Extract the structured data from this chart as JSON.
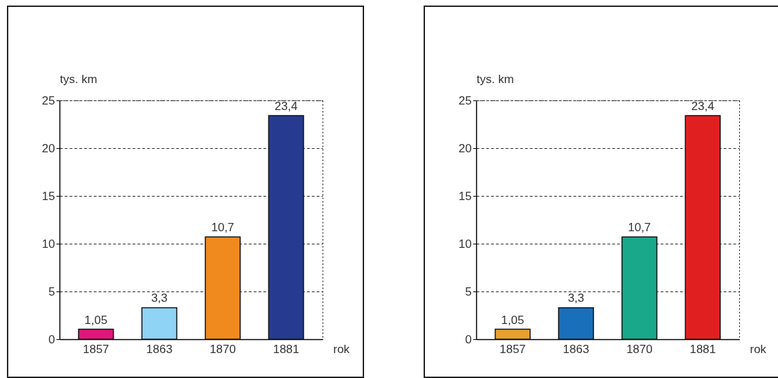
{
  "chart_data": [
    {
      "type": "bar",
      "categories": [
        "1857",
        "1863",
        "1870",
        "1881"
      ],
      "values": [
        1.05,
        3.3,
        10.7,
        23.4
      ],
      "colors": [
        "#e0177a",
        "#8fd3f5",
        "#f08a1e",
        "#263b8f"
      ],
      "value_labels": [
        "1,05",
        "3,3",
        "10,7",
        "23,4"
      ],
      "ylabel": "tys. km",
      "xlabel": "rok",
      "ylim": [
        0,
        25
      ],
      "yticks": [
        0,
        5,
        10,
        15,
        20,
        25
      ],
      "grid": "y"
    },
    {
      "type": "bar",
      "categories": [
        "1857",
        "1863",
        "1870",
        "1881"
      ],
      "values": [
        1.05,
        3.3,
        10.7,
        23.4
      ],
      "colors": [
        "#e8a030",
        "#1a6fba",
        "#19a88a",
        "#e02020"
      ],
      "value_labels": [
        "1,05",
        "3,3",
        "10,7",
        "23,4"
      ],
      "ylabel": "tys. km",
      "xlabel": "rok",
      "ylim": [
        0,
        25
      ],
      "yticks": [
        0,
        5,
        10,
        15,
        20,
        25
      ],
      "grid": "y"
    }
  ]
}
